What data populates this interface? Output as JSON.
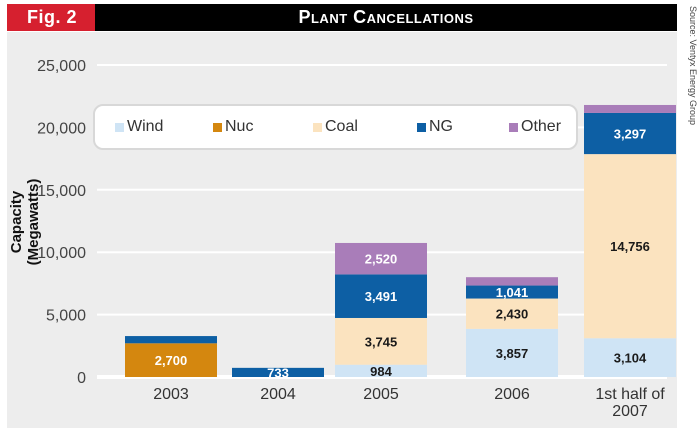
{
  "figure_label": "Fig. 2",
  "source": "Source: Ventyx Energy Group",
  "chart_data": {
    "type": "bar",
    "stacked": true,
    "title": "Plant Cancellations",
    "xlabel": "",
    "ylabel": "Capacity (Megawatts)",
    "ylim": [
      0,
      25000
    ],
    "yticks": [
      0,
      5000,
      10000,
      15000,
      20000,
      25000
    ],
    "ytick_labels": [
      "0",
      "5,000",
      "10,000",
      "15,000",
      "20,000",
      "25,000"
    ],
    "grid": true,
    "legend_position": "top",
    "categories": [
      "2003",
      "2004",
      "2005",
      "2006",
      "1st half of 2007"
    ],
    "category_lines": [
      [
        "2003"
      ],
      [
        "2004"
      ],
      [
        "2005"
      ],
      [
        "2006"
      ],
      [
        "1st half of",
        "2007"
      ]
    ],
    "series": [
      {
        "name": "Wind",
        "color": "#cfe4f5",
        "label_color": "#1a1a1a",
        "values": [
          0,
          0,
          984,
          3857,
          3104
        ],
        "labels": [
          "",
          "",
          "984",
          "3,857",
          "3,104"
        ]
      },
      {
        "name": "Nuc",
        "color": "#d4870f",
        "label_color": "#ffffff",
        "values": [
          2700,
          0,
          0,
          0,
          0
        ],
        "labels": [
          "2,700",
          "",
          "",
          "",
          ""
        ]
      },
      {
        "name": "Coal",
        "color": "#fbe3bf",
        "label_color": "#1a1a1a",
        "values": [
          0,
          0,
          3745,
          2430,
          14756
        ],
        "labels": [
          "",
          "",
          "3,745",
          "2,430",
          "14,756"
        ]
      },
      {
        "name": "NG",
        "color": "#0d5fa4",
        "label_color": "#ffffff",
        "values": [
          580,
          733,
          3491,
          1041,
          3297
        ],
        "labels": [
          "",
          "733",
          "3,491",
          "1,041",
          "3,297"
        ]
      },
      {
        "name": "Other",
        "color": "#a97db9",
        "label_color": "#ffffff",
        "values": [
          0,
          0,
          2520,
          670,
          640
        ],
        "labels": [
          "",
          "",
          "2,520",
          "",
          ""
        ]
      }
    ]
  }
}
